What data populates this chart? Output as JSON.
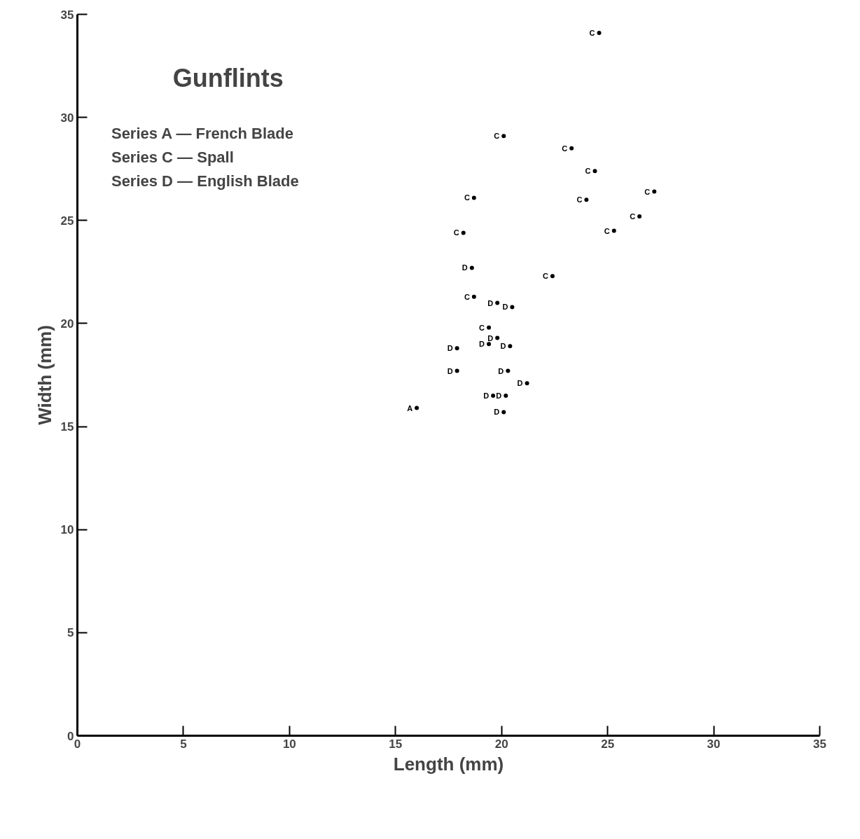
{
  "chart_data": {
    "type": "scatter",
    "title": "Gunflints",
    "xlabel": "Length (mm)",
    "ylabel": "Width (mm)",
    "annotations": [
      "Series A — French Blade",
      "Series C — Spall",
      "Series D — English Blade"
    ],
    "xlim": [
      0,
      35
    ],
    "ylim": [
      0,
      35
    ],
    "xticks": [
      0,
      5,
      10,
      15,
      20,
      25,
      30,
      35
    ],
    "yticks": [
      0,
      5,
      10,
      15,
      20,
      25,
      30,
      35
    ],
    "grid": false,
    "series": [
      {
        "name": "A",
        "color": "#000000",
        "x": [
          16.0
        ],
        "values": [
          15.9
        ]
      },
      {
        "name": "C",
        "color": "#000000",
        "x": [
          24.6,
          20.1,
          23.3,
          24.4,
          27.2,
          18.7,
          24.0,
          26.5,
          25.3,
          18.2,
          22.4,
          18.7,
          19.4
        ],
        "values": [
          34.1,
          29.1,
          28.5,
          27.4,
          26.4,
          26.1,
          26.0,
          25.2,
          24.5,
          24.4,
          22.3,
          21.3,
          19.8
        ]
      },
      {
        "name": "D",
        "color": "#000000",
        "x": [
          18.6,
          19.8,
          20.5,
          17.9,
          19.4,
          19.8,
          20.4,
          17.9,
          20.3,
          21.2,
          19.6,
          20.2,
          20.1
        ],
        "values": [
          22.7,
          21.0,
          20.8,
          18.8,
          19.0,
          19.3,
          18.9,
          17.7,
          17.7,
          17.1,
          16.5,
          16.5,
          15.7
        ]
      }
    ]
  }
}
